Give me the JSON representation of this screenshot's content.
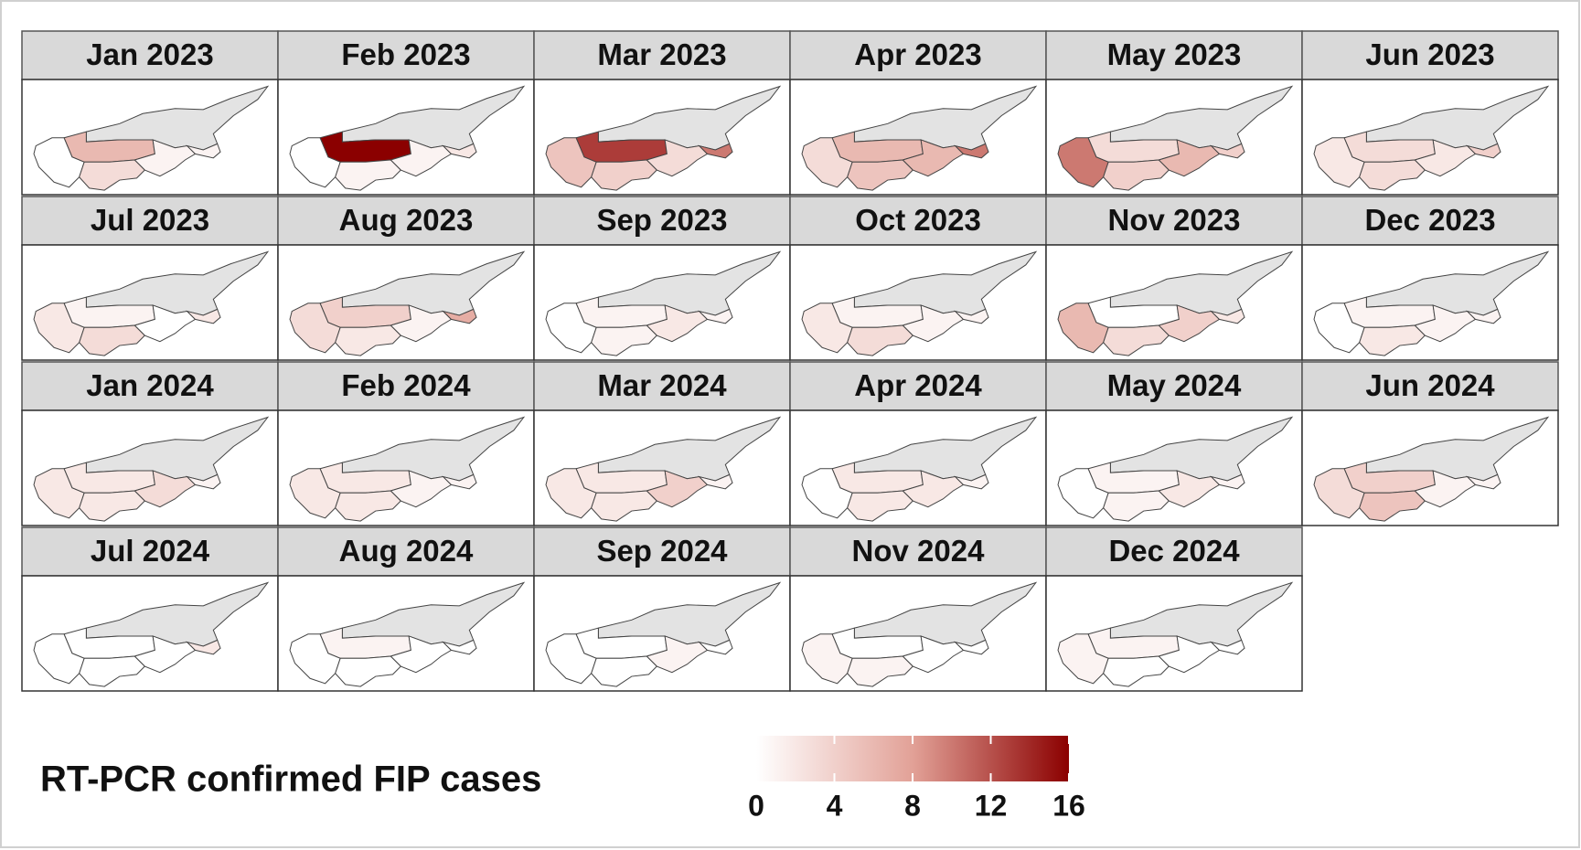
{
  "panels": [
    {
      "title": "Jan 2023",
      "values": [
        0,
        6,
        3,
        1,
        1
      ]
    },
    {
      "title": "Feb 2023",
      "values": [
        0,
        16,
        1,
        1,
        2
      ]
    },
    {
      "title": "Mar 2023",
      "values": [
        5,
        13,
        4,
        3,
        10
      ]
    },
    {
      "title": "Apr 2023",
      "values": [
        3,
        6,
        5,
        6,
        10
      ]
    },
    {
      "title": "May 2023",
      "values": [
        10,
        3,
        4,
        6,
        4
      ]
    },
    {
      "title": "Jun 2023",
      "values": [
        2,
        3,
        3,
        2,
        4
      ]
    },
    {
      "title": "Jul 2023",
      "values": [
        2,
        1,
        3,
        0,
        2
      ]
    },
    {
      "title": "Aug 2023",
      "values": [
        3,
        4,
        2,
        1,
        7
      ]
    },
    {
      "title": "Sep 2023",
      "values": [
        0,
        1,
        1,
        2,
        1
      ]
    },
    {
      "title": "Oct 2023",
      "values": [
        2,
        1,
        3,
        1,
        1
      ]
    },
    {
      "title": "Nov 2023",
      "values": [
        6,
        0,
        3,
        4,
        2
      ]
    },
    {
      "title": "Dec 2023",
      "values": [
        0,
        1,
        2,
        1,
        1
      ]
    },
    {
      "title": "Jan 2024",
      "values": [
        2,
        2,
        2,
        3,
        1
      ]
    },
    {
      "title": "Feb 2024",
      "values": [
        2,
        2,
        2,
        1,
        1
      ]
    },
    {
      "title": "Mar 2024",
      "values": [
        2,
        2,
        2,
        4,
        1
      ]
    },
    {
      "title": "Apr 2024",
      "values": [
        0,
        2,
        2,
        2,
        1
      ]
    },
    {
      "title": "May 2024",
      "values": [
        0,
        1,
        1,
        2,
        1
      ]
    },
    {
      "title": "Jun 2024",
      "values": [
        3,
        4,
        5,
        1,
        1
      ]
    },
    {
      "title": "Jul 2024",
      "values": [
        0,
        0,
        0,
        0,
        2
      ]
    },
    {
      "title": "Aug 2024",
      "values": [
        0,
        1,
        0,
        0,
        0
      ]
    },
    {
      "title": "Sep 2024",
      "values": [
        0,
        0,
        0,
        1,
        0
      ]
    },
    {
      "title": "Nov 2024",
      "values": [
        1,
        0,
        1,
        0,
        0
      ]
    },
    {
      "title": "Dec 2024",
      "values": [
        1,
        1,
        0,
        0,
        0
      ]
    }
  ],
  "no_data_color": "#e3e3e3",
  "legend": {
    "title": "RT-PCR confirmed FIP cases",
    "lim": [
      0,
      16
    ],
    "ticks": [
      0,
      4,
      8,
      12,
      16
    ],
    "colors": [
      "#ffffff",
      "#e2a197",
      "#8b0000"
    ]
  }
}
